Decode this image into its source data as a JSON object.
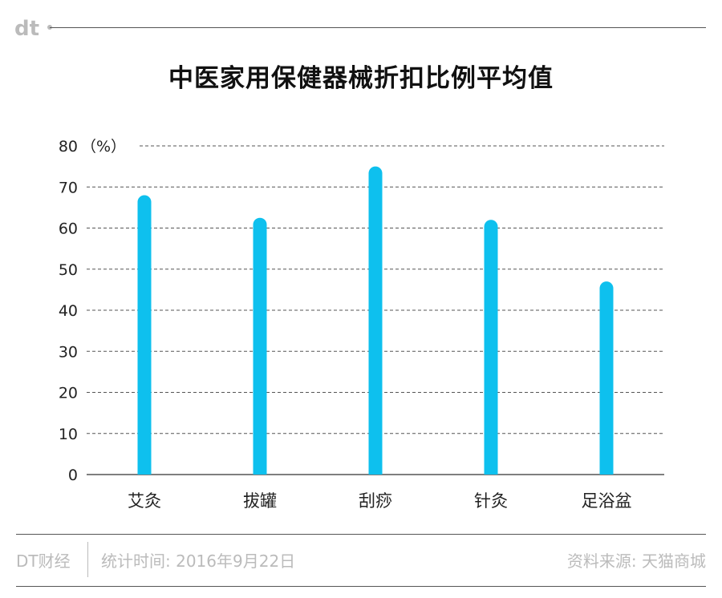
{
  "header": {
    "logo_text": "dt"
  },
  "chart_data": {
    "type": "bar",
    "title": "中医家用保健器械折扣比例平均值",
    "unit_label": "（%）",
    "categories": [
      "艾灸",
      "拔罐",
      "刮痧",
      "针灸",
      "足浴盆"
    ],
    "values": [
      68,
      62.5,
      75,
      62,
      47
    ],
    "ylim": [
      0,
      80
    ],
    "yticks": [
      0,
      10,
      20,
      30,
      40,
      50,
      60,
      70,
      80
    ],
    "grid": true,
    "bar_color": "#0ec0ee"
  },
  "footer": {
    "brand": "DT财经",
    "date": "统计时间: 2016年9月22日",
    "source": "资料来源: 天猫商城"
  },
  "colors": {
    "rule": "#555555",
    "footer_text": "#bbbbbb"
  }
}
